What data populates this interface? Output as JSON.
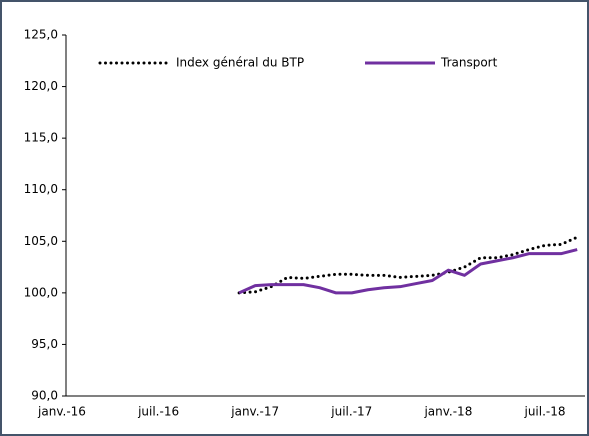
{
  "chart_data": {
    "type": "line",
    "categories": [
      "janv.-16",
      null,
      null,
      null,
      null,
      null,
      "juil.-16",
      null,
      null,
      null,
      null,
      null,
      "janv.-17",
      null,
      null,
      null,
      null,
      null,
      "juil.-17",
      null,
      null,
      null,
      null,
      null,
      "janv.-18",
      null,
      null,
      null,
      null,
      null,
      "juil.-18",
      null,
      null
    ],
    "series": [
      {
        "name": "Index général du BTP",
        "color": "#000000",
        "dash": "dotted",
        "values": [
          null,
          null,
          null,
          null,
          null,
          null,
          null,
          null,
          null,
          null,
          null,
          100.0,
          100.1,
          100.6,
          101.5,
          101.4,
          101.6,
          101.8,
          101.8,
          101.7,
          101.7,
          101.5,
          101.6,
          101.7,
          102.0,
          102.5,
          103.4,
          103.4,
          103.7,
          104.2,
          104.6,
          104.7,
          105.4
        ]
      },
      {
        "name": "Transport",
        "color": "#7030a0",
        "dash": "solid",
        "values": [
          null,
          null,
          null,
          null,
          null,
          null,
          null,
          null,
          null,
          null,
          null,
          100.0,
          100.7,
          100.8,
          100.8,
          100.8,
          100.5,
          100.0,
          100.0,
          100.3,
          100.5,
          100.6,
          100.9,
          101.2,
          102.2,
          101.7,
          102.8,
          103.1,
          103.4,
          103.8,
          103.8,
          103.8,
          104.2
        ]
      }
    ],
    "ylim": [
      90,
      125
    ],
    "yticks": [
      {
        "value": 90,
        "label": "90,0"
      },
      {
        "value": 95,
        "label": "95,0"
      },
      {
        "value": 100,
        "label": "100,0"
      },
      {
        "value": 105,
        "label": "105,0"
      },
      {
        "value": 110,
        "label": "110,0"
      },
      {
        "value": 115,
        "label": "115,0"
      },
      {
        "value": 120,
        "label": "120,0"
      },
      {
        "value": 125,
        "label": "125,0"
      }
    ],
    "legend": "top"
  }
}
